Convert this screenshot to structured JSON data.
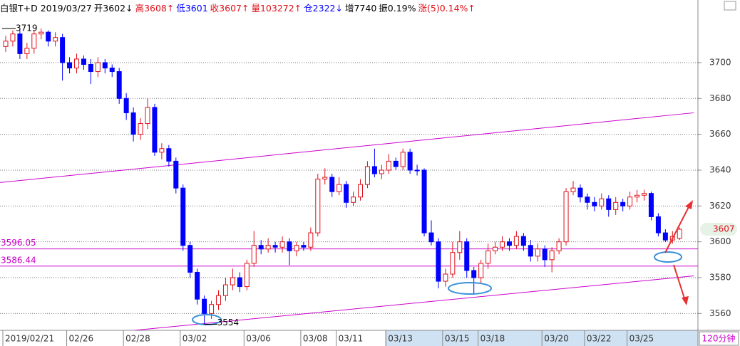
{
  "header": [
    {
      "text": "白银T+D 2019/03/27",
      "color": "#000000"
    },
    {
      "text": "开3602↓",
      "color": "#000000"
    },
    {
      "text": "高3608↑",
      "color": "#e0101a"
    },
    {
      "text": "低3601",
      "color": "#0000ff"
    },
    {
      "text": "收3607↑",
      "color": "#e0101a"
    },
    {
      "text": "量103272↑",
      "color": "#e0101a"
    },
    {
      "text": "仓2322↓",
      "color": "#0000ff"
    },
    {
      "text": "增7740",
      "color": "#000000"
    },
    {
      "text": "振0.19%",
      "color": "#000000"
    },
    {
      "text": "涨(5)0.14%↑",
      "color": "#e0101a"
    }
  ],
  "period": "120分钟",
  "chart_data": {
    "type": "candlestick",
    "up_color": "#e0101a",
    "down_color": "#0000ff",
    "categories": [
      "2019/02/21",
      null,
      null,
      null,
      null,
      null,
      null,
      null,
      null,
      "02/26",
      null,
      null,
      null,
      null,
      null,
      null,
      null,
      "02/28",
      null,
      null,
      null,
      null,
      null,
      null,
      null,
      "03/02",
      null,
      null,
      null,
      null,
      null,
      null,
      null,
      null,
      "03/06",
      null,
      null,
      null,
      null,
      null,
      null,
      null,
      "03/08",
      null,
      null,
      null,
      null,
      "03/11",
      null,
      null,
      null,
      null,
      null,
      null,
      "03/13",
      null,
      null,
      null,
      null,
      null,
      null,
      null,
      "03/15",
      null,
      null,
      null,
      null,
      "03/18",
      null,
      null,
      null,
      null,
      null,
      null,
      null,
      null,
      "03/20",
      null,
      null,
      null,
      null,
      null,
      "03/22",
      null,
      null,
      null,
      null,
      null,
      "03/25",
      null,
      null,
      null,
      null,
      null,
      null,
      null
    ],
    "open": [
      3709,
      3712,
      3716,
      3705,
      3708,
      3716,
      3717,
      3712,
      3714,
      3700,
      3697,
      3702,
      3699,
      3695,
      3700,
      3697,
      3695,
      3680,
      3672,
      3660,
      3666,
      3675,
      3650,
      3652,
      3645,
      3630,
      3598,
      3583,
      3568,
      3560,
      3565,
      3570,
      3576,
      3580,
      3575,
      3588,
      3598,
      3596,
      3598,
      3597,
      3600,
      3595,
      3598,
      3597,
      3605,
      3635,
      3636,
      3628,
      3632,
      3622,
      3625,
      3632,
      3642,
      3638,
      3640,
      3645,
      3642,
      3650,
      3640,
      3640,
      3605,
      3600,
      3578,
      3582,
      3594,
      3600,
      3584,
      3580,
      3588,
      3595,
      3597,
      3600,
      3598,
      3603,
      3598,
      3592,
      3596,
      3590,
      3595,
      3600,
      3628,
      3630,
      3625,
      3622,
      3620,
      3624,
      3618,
      3622,
      3620,
      3625,
      3626,
      3627,
      3614,
      3605,
      3601,
      3602
    ],
    "high": [
      3715,
      3718,
      3718,
      3711,
      3718,
      3719,
      3718,
      3717,
      3716,
      3703,
      3705,
      3704,
      3702,
      3703,
      3702,
      3699,
      3697,
      3683,
      3675,
      3669,
      3680,
      3677,
      3655,
      3654,
      3647,
      3632,
      3600,
      3585,
      3570,
      3567,
      3573,
      3580,
      3585,
      3583,
      3590,
      3606,
      3601,
      3602,
      3600,
      3603,
      3602,
      3600,
      3600,
      3608,
      3638,
      3641,
      3638,
      3636,
      3634,
      3628,
      3635,
      3645,
      3652,
      3643,
      3649,
      3647,
      3652,
      3652,
      3643,
      3641,
      3612,
      3602,
      3585,
      3600,
      3606,
      3602,
      3586,
      3590,
      3599,
      3600,
      3603,
      3602,
      3606,
      3605,
      3601,
      3599,
      3598,
      3597,
      3602,
      3630,
      3634,
      3632,
      3627,
      3625,
      3627,
      3626,
      3625,
      3624,
      3628,
      3629,
      3629,
      3628,
      3616,
      3607,
      3606,
      3608
    ],
    "low": [
      3706,
      3709,
      3702,
      3702,
      3705,
      3713,
      3709,
      3709,
      3690,
      3694,
      3694,
      3696,
      3688,
      3692,
      3694,
      3692,
      3677,
      3668,
      3656,
      3657,
      3663,
      3648,
      3646,
      3642,
      3627,
      3595,
      3580,
      3565,
      3554,
      3557,
      3562,
      3567,
      3573,
      3572,
      3573,
      3586,
      3593,
      3594,
      3594,
      3594,
      3587,
      3592,
      3595,
      3595,
      3603,
      3632,
      3625,
      3626,
      3619,
      3620,
      3623,
      3630,
      3636,
      3635,
      3638,
      3640,
      3640,
      3638,
      3637,
      3603,
      3598,
      3574,
      3575,
      3580,
      3590,
      3580,
      3571,
      3577,
      3585,
      3593,
      3595,
      3595,
      3596,
      3595,
      3589,
      3589,
      3586,
      3583,
      3593,
      3598,
      3626,
      3622,
      3618,
      3617,
      3618,
      3614,
      3615,
      3617,
      3618,
      3622,
      3623,
      3612,
      3603,
      3600,
      3599,
      3601
    ],
    "close": [
      3712,
      3716,
      3705,
      3708,
      3716,
      3717,
      3712,
      3714,
      3700,
      3697,
      3702,
      3699,
      3695,
      3700,
      3697,
      3695,
      3680,
      3672,
      3660,
      3666,
      3675,
      3650,
      3652,
      3645,
      3630,
      3598,
      3583,
      3568,
      3560,
      3565,
      3570,
      3576,
      3580,
      3575,
      3588,
      3598,
      3596,
      3598,
      3597,
      3600,
      3595,
      3598,
      3597,
      3605,
      3635,
      3636,
      3628,
      3632,
      3622,
      3625,
      3632,
      3642,
      3638,
      3640,
      3645,
      3642,
      3650,
      3640,
      3640,
      3605,
      3600,
      3578,
      3582,
      3594,
      3600,
      3584,
      3580,
      3588,
      3595,
      3597,
      3600,
      3598,
      3603,
      3598,
      3592,
      3596,
      3590,
      3595,
      3600,
      3628,
      3630,
      3625,
      3622,
      3620,
      3624,
      3618,
      3622,
      3620,
      3625,
      3626,
      3627,
      3614,
      3605,
      3601,
      3603,
      3607
    ],
    "ylim": [
      3551,
      3727
    ],
    "yticks": [
      3560,
      3580,
      3600,
      3620,
      3640,
      3660,
      3680,
      3700
    ],
    "grid": true,
    "line_color": "#cc00cc",
    "horizontal_lines": [
      3596.05,
      3586.44
    ],
    "trend_lines": [
      {
        "from": [
          0,
          3633
        ],
        "to": [
          97,
          3672
        ]
      },
      {
        "from": [
          15,
          3549
        ],
        "to": [
          97,
          3581
        ]
      }
    ]
  }
}
